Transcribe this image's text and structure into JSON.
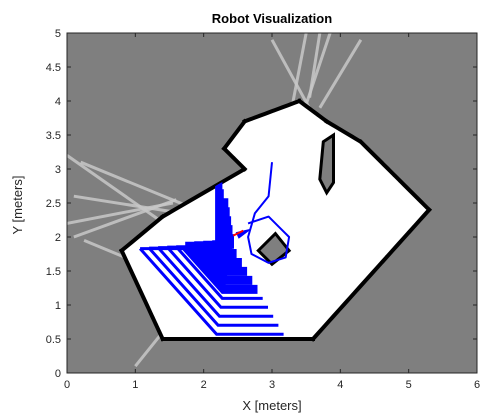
{
  "chart_data": {
    "type": "map",
    "title": "Robot Visualization",
    "xlabel": "X [meters]",
    "ylabel": "Y [meters]",
    "xlim": [
      0,
      6
    ],
    "ylim": [
      0,
      5
    ],
    "xticks": [
      "0",
      "1",
      "2",
      "3",
      "4",
      "5",
      "6"
    ],
    "yticks": [
      "0",
      "0.5",
      "1",
      "1.5",
      "2",
      "2.5",
      "3",
      "3.5",
      "4",
      "4.5",
      "5"
    ],
    "grid": false,
    "colors": {
      "unknown": "#7f7f7f",
      "free": "#ffffff",
      "occupied": "#000000",
      "rays": "#c8c8c8",
      "scan": "#0000ff",
      "path": "#0000ff",
      "robot": "#ff0000"
    },
    "free_space_polygon": [
      [
        0.8,
        1.8
      ],
      [
        1.4,
        2.3
      ],
      [
        2.6,
        3.0
      ],
      [
        2.3,
        3.3
      ],
      [
        2.6,
        3.7
      ],
      [
        3.4,
        4.0
      ],
      [
        3.8,
        3.7
      ],
      [
        4.3,
        3.4
      ],
      [
        5.3,
        2.4
      ],
      [
        3.6,
        0.5
      ],
      [
        1.4,
        0.5
      ]
    ],
    "obstacles": [
      {
        "name": "center-block",
        "points": [
          [
            2.8,
            1.8
          ],
          [
            3.0,
            1.6
          ],
          [
            3.25,
            1.8
          ],
          [
            3.05,
            2.05
          ]
        ]
      },
      {
        "name": "upper-post",
        "points": [
          [
            3.75,
            3.4
          ],
          [
            3.9,
            3.5
          ],
          [
            3.9,
            2.8
          ],
          [
            3.8,
            2.65
          ],
          [
            3.7,
            2.85
          ]
        ]
      }
    ],
    "wall_segments": [
      [
        [
          0.8,
          1.8
        ],
        [
          1.4,
          2.3
        ]
      ],
      [
        [
          1.4,
          2.3
        ],
        [
          2.6,
          3.0
        ]
      ],
      [
        [
          2.6,
          3.0
        ],
        [
          2.3,
          3.3
        ]
      ],
      [
        [
          2.3,
          3.3
        ],
        [
          2.6,
          3.7
        ]
      ],
      [
        [
          2.6,
          3.7
        ],
        [
          3.4,
          4.0
        ]
      ],
      [
        [
          3.4,
          4.0
        ],
        [
          3.8,
          3.7
        ]
      ],
      [
        [
          3.8,
          3.7
        ],
        [
          4.3,
          3.4
        ]
      ],
      [
        [
          4.3,
          3.4
        ],
        [
          5.3,
          2.4
        ]
      ],
      [
        [
          5.3,
          2.4
        ],
        [
          3.6,
          0.5
        ]
      ],
      [
        [
          3.6,
          0.5
        ],
        [
          1.4,
          0.5
        ]
      ],
      [
        [
          1.4,
          0.5
        ],
        [
          0.8,
          1.8
        ]
      ]
    ],
    "rays": [
      [
        [
          0.1,
          2.0
        ],
        [
          1.6,
          2.55
        ]
      ],
      [
        [
          0.0,
          2.2
        ],
        [
          1.55,
          2.5
        ]
      ],
      [
        [
          0.1,
          2.6
        ],
        [
          2.0,
          2.3
        ]
      ],
      [
        [
          0.2,
          3.1
        ],
        [
          1.9,
          2.4
        ]
      ],
      [
        [
          0.0,
          3.2
        ],
        [
          1.35,
          2.25
        ]
      ],
      [
        [
          0.25,
          1.95
        ],
        [
          0.85,
          1.7
        ]
      ],
      [
        [
          1.4,
          0.6
        ],
        [
          1.0,
          0.1
        ]
      ],
      [
        [
          3.3,
          3.95
        ],
        [
          3.5,
          5.0
        ]
      ],
      [
        [
          3.5,
          3.95
        ],
        [
          3.85,
          5.0
        ]
      ],
      [
        [
          3.7,
          3.9
        ],
        [
          4.3,
          4.9
        ]
      ],
      [
        [
          3.6,
          3.8
        ],
        [
          3.0,
          4.9
        ]
      ],
      [
        [
          3.55,
          4.05
        ],
        [
          3.7,
          5.0
        ]
      ]
    ],
    "scan": {
      "origin": [
        2.4,
        1.9
      ],
      "inner_radius": 0.15,
      "outer_radius": 1.4,
      "rings": 10
    },
    "path": [
      [
        2.65,
        2.2
      ],
      [
        2.95,
        2.3
      ],
      [
        3.1,
        2.15
      ],
      [
        3.25,
        2.0
      ],
      [
        3.2,
        1.7
      ],
      [
        2.95,
        1.62
      ],
      [
        2.7,
        1.75
      ],
      [
        2.65,
        2.0
      ],
      [
        2.75,
        2.35
      ],
      [
        2.95,
        2.6
      ],
      [
        3.0,
        3.1
      ]
    ],
    "robot": {
      "x": 2.55,
      "y": 2.05,
      "heading_deg": 25
    }
  }
}
